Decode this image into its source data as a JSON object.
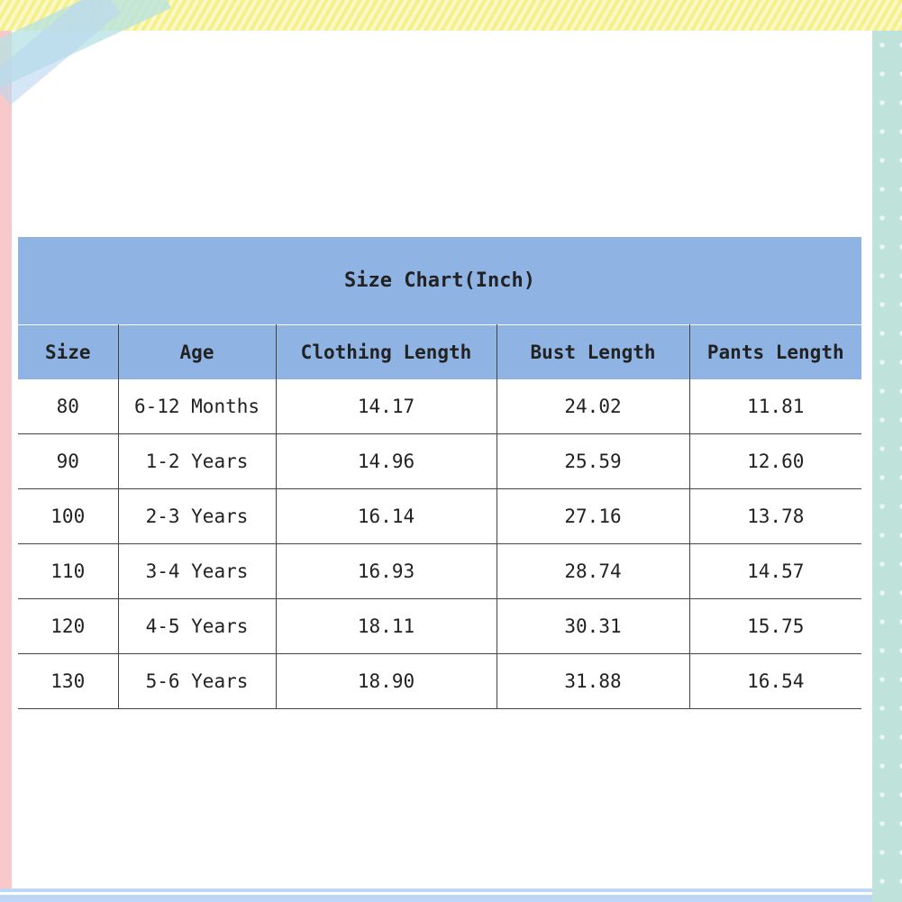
{
  "colors": {
    "header": "#8fb4e3",
    "top_band": "#f5f08a",
    "right_band": "#bfe3da",
    "left_band": "#f9c9c9"
  },
  "table": {
    "title": "Size Chart(Inch)",
    "headers": [
      "Size",
      "Age",
      "Clothing Length",
      "Bust Length",
      "Pants Length"
    ],
    "rows": [
      [
        "80",
        "6-12 Months",
        "14.17",
        "24.02",
        "11.81"
      ],
      [
        "90",
        "1-2 Years",
        "14.96",
        "25.59",
        "12.60"
      ],
      [
        "100",
        "2-3 Years",
        "16.14",
        "27.16",
        "13.78"
      ],
      [
        "110",
        "3-4 Years",
        "16.93",
        "28.74",
        "14.57"
      ],
      [
        "120",
        "4-5 Years",
        "18.11",
        "30.31",
        "15.75"
      ],
      [
        "130",
        "5-6 Years",
        "18.90",
        "31.88",
        "16.54"
      ]
    ]
  }
}
